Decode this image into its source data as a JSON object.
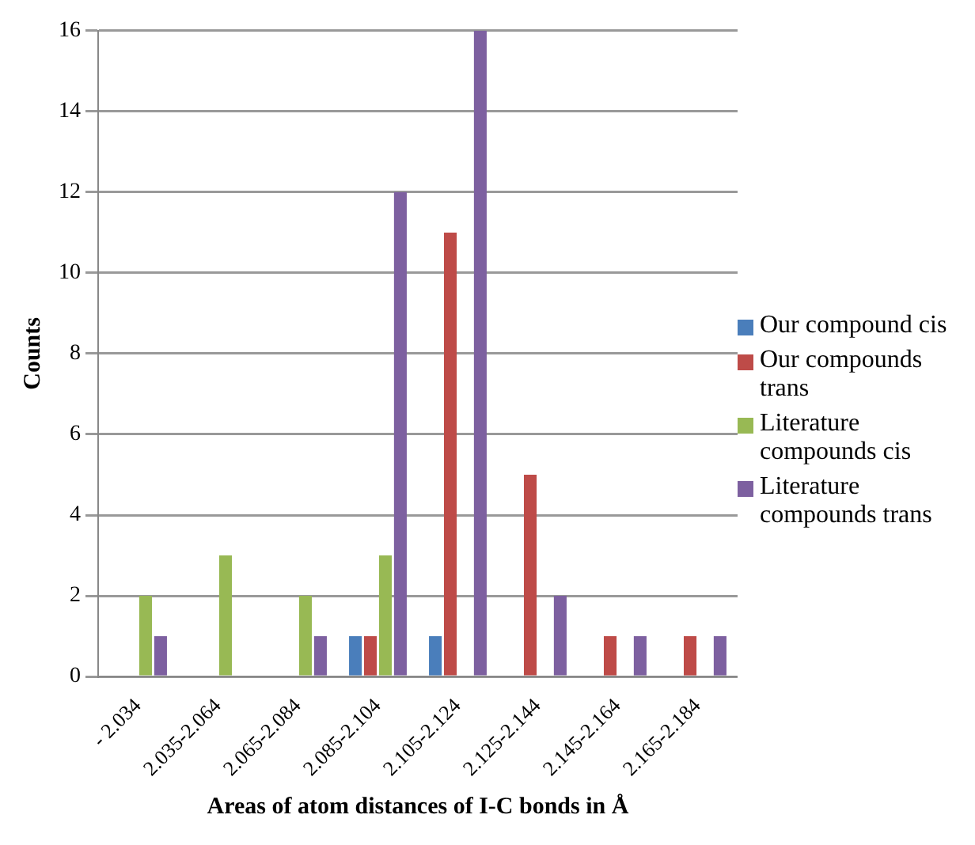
{
  "chart_data": {
    "type": "bar",
    "xlabel": "Areas of atom distances of I-C bonds in Å",
    "ylabel": "Counts",
    "categories": [
      "- 2.034",
      "2.035-2.064",
      "2.065-2.084",
      "2.085-2.104",
      "2.105-2.124",
      "2.125-2.144",
      "2.145-2.164",
      "2.165-2.184"
    ],
    "series": [
      {
        "name": "Our compound cis",
        "color": "#4a7ebb",
        "values": [
          0,
          0,
          0,
          1,
          1,
          0,
          0,
          0
        ]
      },
      {
        "name": "Our compounds trans",
        "color": "#be4b48",
        "values": [
          0,
          0,
          0,
          1,
          11,
          5,
          1,
          1
        ]
      },
      {
        "name": "Literature compounds cis",
        "color": "#98b954",
        "values": [
          2,
          3,
          2,
          3,
          0,
          0,
          0,
          0
        ]
      },
      {
        "name": "Literature compounds trans",
        "color": "#7d60a0",
        "values": [
          1,
          0,
          1,
          12,
          16,
          2,
          1,
          1
        ]
      }
    ],
    "ylim": [
      0,
      16
    ],
    "yticks": [
      0,
      2,
      4,
      6,
      8,
      10,
      12,
      14,
      16
    ],
    "grid": "y",
    "legend": "right"
  }
}
